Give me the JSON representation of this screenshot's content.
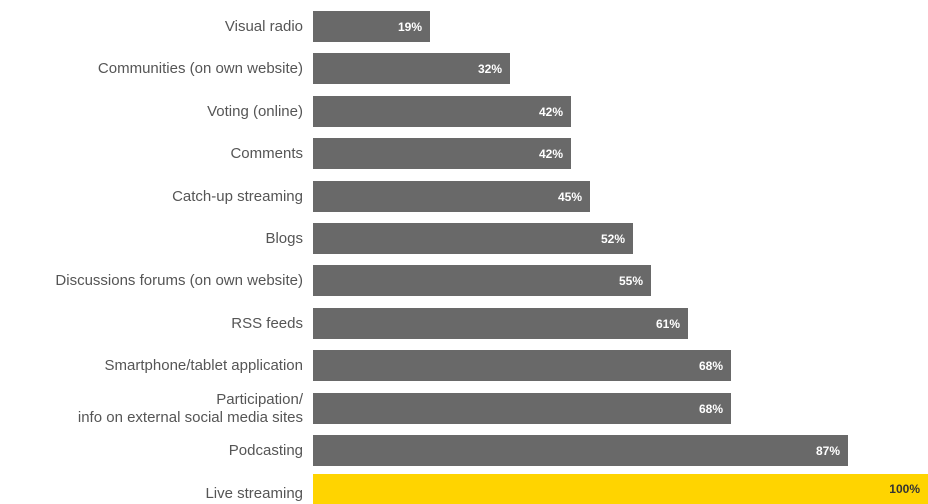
{
  "chart_data": {
    "type": "bar",
    "orientation": "horizontal",
    "categories": [
      "Visual radio",
      "Communities (on own website)",
      "Voting (online)",
      "Comments",
      "Catch-up streaming",
      "Blogs",
      "Discussions forums (on own website)",
      "RSS feeds",
      "Smartphone/tablet application",
      "Participation/\ninfo on external social media sites",
      "Podcasting",
      "Live streaming"
    ],
    "values": [
      19,
      32,
      42,
      42,
      45,
      52,
      55,
      61,
      68,
      68,
      87,
      100
    ],
    "value_labels": [
      "19%",
      "32%",
      "42%",
      "42%",
      "45%",
      "52%",
      "55%",
      "61%",
      "68%",
      "68%",
      "87%",
      "100%"
    ],
    "xlim": [
      0,
      100
    ],
    "grid": false,
    "bar_color": "#696969",
    "highlight_color": "#FFD400",
    "highlight_category": "Live streaming",
    "highlight_value_color": "#333333"
  }
}
